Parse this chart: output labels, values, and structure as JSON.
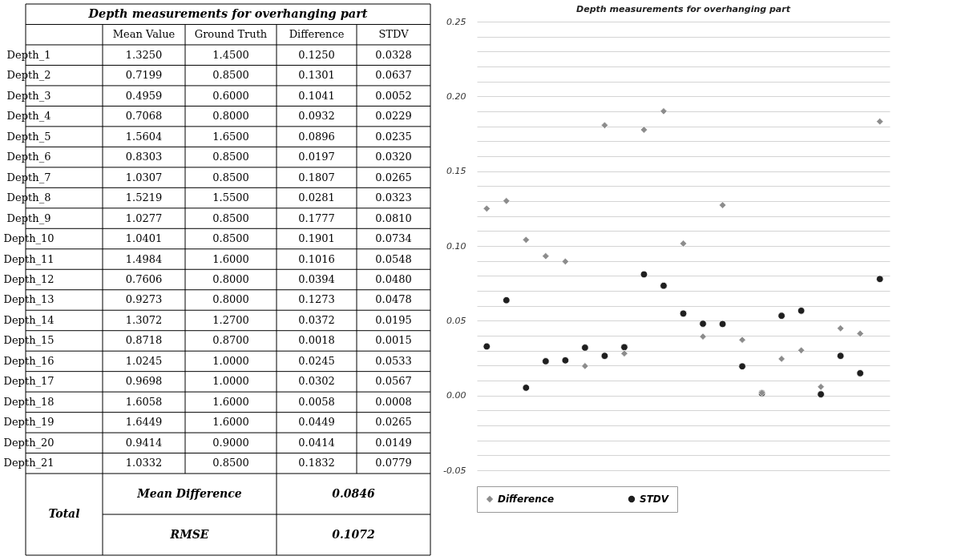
{
  "chart_data": [
    {
      "type": "heatmap",
      "title": "Depth measurements for overhanging part",
      "categories": [
        "Mean Value",
        "Ground Truth",
        "Difference",
        "STDV"
      ],
      "y_categories": [
        "Depth_1",
        "Depth_2",
        "Depth_3",
        "Depth_4",
        "Depth_5",
        "Depth_6",
        "Depth_7",
        "Depth_8",
        "Depth_9",
        "Depth_10",
        "Depth_11",
        "Depth_12",
        "Depth_13",
        "Depth_14",
        "Depth_15",
        "Depth_16",
        "Depth_17",
        "Depth_18",
        "Depth_19",
        "Depth_20",
        "Depth_21"
      ],
      "cells": [
        [
          1.325,
          1.45,
          0.125,
          0.0328
        ],
        [
          0.7199,
          0.85,
          0.1301,
          0.0637
        ],
        [
          0.4959,
          0.6,
          0.1041,
          0.0052
        ],
        [
          0.7068,
          0.8,
          0.0932,
          0.0229
        ],
        [
          1.5604,
          1.65,
          0.0896,
          0.0235
        ],
        [
          0.8303,
          0.85,
          0.0197,
          0.032
        ],
        [
          1.0307,
          0.85,
          0.1807,
          0.0265
        ],
        [
          1.5219,
          1.55,
          0.0281,
          0.0323
        ],
        [
          1.0277,
          0.85,
          0.1777,
          0.081
        ],
        [
          1.0401,
          0.85,
          0.1901,
          0.0734
        ],
        [
          1.4984,
          1.6,
          0.1016,
          0.0548
        ],
        [
          0.7606,
          0.8,
          0.0394,
          0.048
        ],
        [
          0.9273,
          0.8,
          0.1273,
          0.0478
        ],
        [
          1.3072,
          1.27,
          0.0372,
          0.0195
        ],
        [
          0.8718,
          0.87,
          0.0018,
          0.0015
        ],
        [
          1.0245,
          1.0,
          0.0245,
          0.0533
        ],
        [
          0.9698,
          1.0,
          0.0302,
          0.0567
        ],
        [
          1.6058,
          1.6,
          0.0058,
          0.0008
        ],
        [
          1.6449,
          1.6,
          0.0449,
          0.0265
        ],
        [
          0.9414,
          0.9,
          0.0414,
          0.0149
        ],
        [
          1.0332,
          0.85,
          0.1832,
          0.0779
        ]
      ],
      "cell_labels": [
        [
          "1.3250",
          "1.4500",
          "0.1250",
          "0.0328"
        ],
        [
          "0.7199",
          "0.8500",
          "0.1301",
          "0.0637"
        ],
        [
          "0.4959",
          "0.6000",
          "0.1041",
          "0.0052"
        ],
        [
          "0.7068",
          "0.8000",
          "0.0932",
          "0.0229"
        ],
        [
          "1.5604",
          "1.6500",
          "0.0896",
          "0.0235"
        ],
        [
          "0.8303",
          "0.8500",
          "0.0197",
          "0.0320"
        ],
        [
          "1.0307",
          "0.8500",
          "0.1807",
          "0.0265"
        ],
        [
          "1.5219",
          "1.5500",
          "0.0281",
          "0.0323"
        ],
        [
          "1.0277",
          "0.8500",
          "0.1777",
          "0.0810"
        ],
        [
          "1.0401",
          "0.8500",
          "0.1901",
          "0.0734"
        ],
        [
          "1.4984",
          "1.6000",
          "0.1016",
          "0.0548"
        ],
        [
          "0.7606",
          "0.8000",
          "0.0394",
          "0.0480"
        ],
        [
          "0.9273",
          "0.8000",
          "0.1273",
          "0.0478"
        ],
        [
          "1.3072",
          "1.2700",
          "0.0372",
          "0.0195"
        ],
        [
          "0.8718",
          "0.8700",
          "0.0018",
          "0.0015"
        ],
        [
          "1.0245",
          "1.0000",
          "0.0245",
          "0.0533"
        ],
        [
          "0.9698",
          "1.0000",
          "0.0302",
          "0.0567"
        ],
        [
          "1.6058",
          "1.6000",
          "0.0058",
          "0.0008"
        ],
        [
          "1.6449",
          "1.6000",
          "0.0449",
          "0.0265"
        ],
        [
          "0.9414",
          "0.9000",
          "0.0414",
          "0.0149"
        ],
        [
          "1.0332",
          "0.8500",
          "0.1832",
          "0.0779"
        ]
      ],
      "annotations": [
        "Total",
        "Mean Difference",
        "0.0846",
        "RMSE",
        "0.1072"
      ]
    },
    {
      "type": "scatter",
      "title": "Depth measurements for overhanging part",
      "categories": [
        null,
        null,
        null,
        null,
        null,
        null,
        null,
        null,
        null,
        null,
        null,
        null,
        null,
        null,
        null,
        null,
        null,
        null,
        null,
        null,
        null
      ],
      "series": [
        {
          "name": "Difference",
          "color": "#8c8c8c",
          "marker": "diamond",
          "values": [
            0.125,
            0.1301,
            0.1041,
            0.0932,
            0.0896,
            0.0197,
            0.1807,
            0.0281,
            0.1777,
            0.1901,
            0.1016,
            0.0394,
            0.1273,
            0.0372,
            0.0018,
            0.0245,
            0.0302,
            0.0058,
            0.0449,
            0.0414,
            0.1832
          ]
        },
        {
          "name": "STDV",
          "color": "#1f1f1f",
          "marker": "circle",
          "values": [
            0.0328,
            0.0637,
            0.0052,
            0.0229,
            0.0235,
            0.032,
            0.0265,
            0.0323,
            0.081,
            0.0734,
            0.0548,
            0.048,
            0.0478,
            0.0195,
            0.0015,
            0.0533,
            0.0567,
            0.0008,
            0.0265,
            0.0149,
            0.0779
          ]
        }
      ],
      "ylim": [
        -0.05,
        0.25
      ],
      "yticks": [
        {
          "value": -0.05,
          "label": "-0.05"
        },
        {
          "value": -0.04,
          "label": null
        },
        {
          "value": -0.03,
          "label": null
        },
        {
          "value": -0.02,
          "label": null
        },
        {
          "value": -0.01,
          "label": null
        },
        {
          "value": 0,
          "label": "0.00"
        },
        {
          "value": 0.01,
          "label": null
        },
        {
          "value": 0.02,
          "label": null
        },
        {
          "value": 0.03,
          "label": null
        },
        {
          "value": 0.04,
          "label": null
        },
        {
          "value": 0.05,
          "label": "0.05"
        },
        {
          "value": 0.06,
          "label": null
        },
        {
          "value": 0.07,
          "label": null
        },
        {
          "value": 0.08,
          "label": null
        },
        {
          "value": 0.09,
          "label": null
        },
        {
          "value": 0.1,
          "label": "0.10"
        },
        {
          "value": 0.11,
          "label": null
        },
        {
          "value": 0.12,
          "label": null
        },
        {
          "value": 0.13,
          "label": null
        },
        {
          "value": 0.14,
          "label": null
        },
        {
          "value": 0.15,
          "label": "0.15"
        },
        {
          "value": 0.16,
          "label": null
        },
        {
          "value": 0.17,
          "label": null
        },
        {
          "value": 0.18,
          "label": null
        },
        {
          "value": 0.19,
          "label": null
        },
        {
          "value": 0.2,
          "label": "0.20"
        },
        {
          "value": 0.21,
          "label": null
        },
        {
          "value": 0.22,
          "label": null
        },
        {
          "value": 0.23,
          "label": null
        },
        {
          "value": 0.24,
          "label": null
        },
        {
          "value": 0.25,
          "label": "0.25"
        }
      ],
      "grid": "y",
      "legend": "bottom"
    }
  ]
}
